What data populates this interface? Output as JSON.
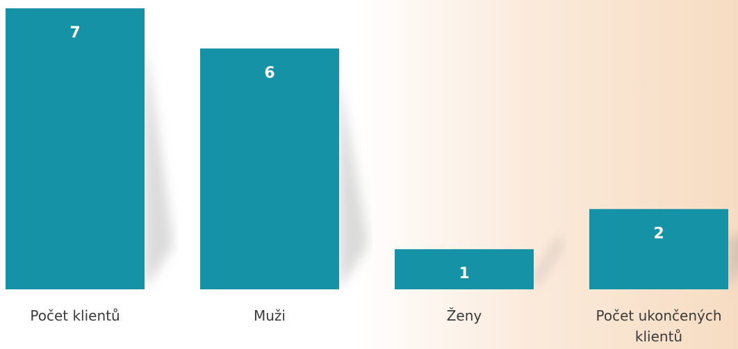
{
  "chart_data": {
    "type": "bar",
    "categories": [
      "Počet klientů",
      "Muži",
      "Ženy",
      "Počet ukončených klientů"
    ],
    "values": [
      7,
      6,
      1,
      2
    ],
    "color": "#1592a6"
  }
}
